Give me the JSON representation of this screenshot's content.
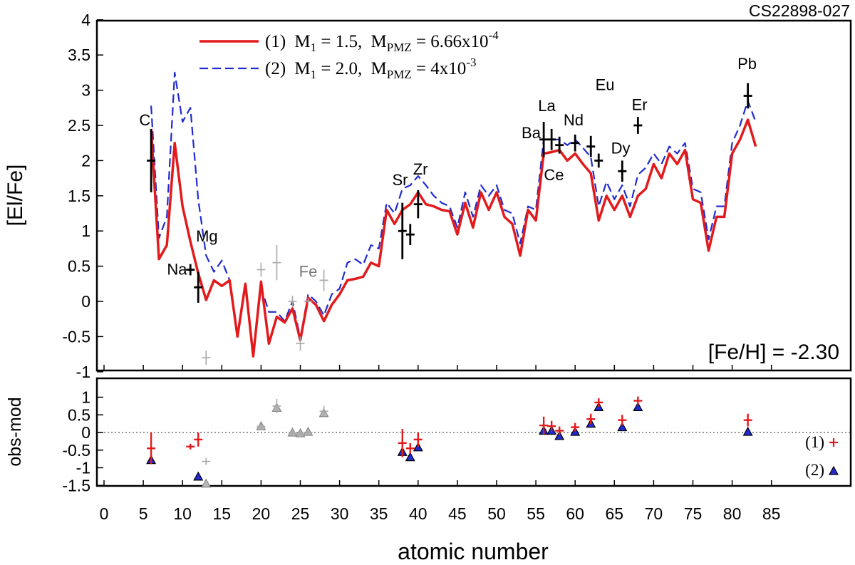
{
  "chart_data": [
    {
      "panel": "top",
      "type": "line",
      "star_name": "CS22898-027",
      "ylabel": "[El/Fe]",
      "xlabel": "atomic number",
      "xlim": [
        0,
        88
      ],
      "ylim": [
        -1,
        4
      ],
      "x_ticks": [
        0,
        5,
        10,
        15,
        20,
        25,
        30,
        35,
        40,
        45,
        50,
        55,
        60,
        65,
        70,
        75,
        80,
        85
      ],
      "y_ticks": [
        "4",
        "3.5",
        "3",
        "2.5",
        "2",
        "1.5",
        "1",
        "0.5",
        "0",
        "-0.5",
        "-1"
      ],
      "metallicity_label": "[Fe/H] = -2.30",
      "legend": [
        {
          "id": "1",
          "prefix": "(1)",
          "m1": "M",
          "m1_sub": "1",
          "m1_val": " = 1.5,",
          "mp": "M",
          "mp_sub": "PMZ",
          "mp_val": " = 6.66x10",
          "mp_exp": "-4",
          "color": "#e31a1c",
          "dash": "solid"
        },
        {
          "id": "2",
          "prefix": "(2)",
          "m1": "M",
          "m1_sub": "1",
          "m1_val": " = 2.0,",
          "mp": "M",
          "mp_sub": "PMZ",
          "mp_val": " = 4x10",
          "mp_exp": "-3",
          "color": "#1f2bd1",
          "dash": "dashed"
        }
      ],
      "series": [
        {
          "id": "1",
          "color": "#e31a1c",
          "x": [
            6,
            7,
            8,
            9,
            10,
            11,
            12,
            13,
            14,
            15,
            16,
            17,
            18,
            19,
            20,
            21,
            22,
            23,
            24,
            25,
            26,
            27,
            28,
            29,
            30,
            31,
            32,
            33,
            34,
            35,
            36,
            37,
            38,
            39,
            40,
            41,
            42,
            43,
            44,
            45,
            46,
            47,
            48,
            49,
            50,
            51,
            52,
            53,
            54,
            55,
            56,
            57,
            58,
            59,
            60,
            61,
            62,
            63,
            64,
            65,
            66,
            67,
            68,
            69,
            70,
            71,
            72,
            73,
            74,
            75,
            76,
            77,
            78,
            79,
            80,
            81,
            82,
            83
          ],
          "y": [
            2.45,
            0.6,
            0.8,
            2.25,
            1.35,
            0.85,
            0.4,
            0.02,
            0.3,
            0.22,
            0.3,
            -0.5,
            0.25,
            -0.78,
            0.28,
            -0.6,
            -0.22,
            -0.3,
            -0.1,
            -0.55,
            0.05,
            -0.05,
            -0.28,
            -0.05,
            0.1,
            0.3,
            0.32,
            0.35,
            0.55,
            0.5,
            1.3,
            1.1,
            1.3,
            1.38,
            1.55,
            1.38,
            1.35,
            1.3,
            1.28,
            0.95,
            1.4,
            1.05,
            1.55,
            1.3,
            1.55,
            1.2,
            1.1,
            0.65,
            1.3,
            1.15,
            2.1,
            2.12,
            2.15,
            2.0,
            2.1,
            1.95,
            1.82,
            1.15,
            1.5,
            1.3,
            1.5,
            1.2,
            1.5,
            1.6,
            1.95,
            1.75,
            2.1,
            1.95,
            2.15,
            1.45,
            1.4,
            0.72,
            1.2,
            1.2,
            2.1,
            2.3,
            2.58,
            2.2
          ]
        },
        {
          "id": "2",
          "color": "#1f2bd1",
          "x": [
            6,
            7,
            8,
            9,
            10,
            11,
            12,
            13,
            14,
            15,
            16,
            17,
            18,
            19,
            20,
            21,
            22,
            23,
            24,
            25,
            26,
            27,
            28,
            29,
            30,
            31,
            32,
            33,
            34,
            35,
            36,
            37,
            38,
            39,
            40,
            41,
            42,
            43,
            44,
            45,
            46,
            47,
            48,
            49,
            50,
            51,
            52,
            53,
            54,
            55,
            56,
            57,
            58,
            59,
            60,
            61,
            62,
            63,
            64,
            65,
            66,
            67,
            68,
            69,
            70,
            71,
            72,
            73,
            74,
            75,
            76,
            77,
            78,
            79,
            80,
            81,
            82,
            83
          ],
          "y": [
            2.78,
            0.9,
            1.2,
            3.25,
            2.55,
            2.75,
            1.45,
            0.65,
            0.42,
            0.58,
            0.3,
            -0.45,
            0.25,
            -0.75,
            0.2,
            -0.15,
            -0.15,
            -0.28,
            0.0,
            -0.52,
            0.1,
            0.0,
            -0.2,
            0.1,
            0.18,
            0.55,
            0.6,
            0.52,
            0.8,
            0.75,
            1.4,
            1.25,
            1.6,
            1.65,
            1.78,
            1.65,
            1.5,
            1.4,
            1.35,
            1.05,
            1.55,
            1.2,
            1.65,
            1.5,
            1.65,
            1.3,
            1.25,
            0.82,
            1.35,
            1.3,
            2.3,
            2.3,
            2.3,
            2.22,
            2.3,
            2.18,
            2.05,
            1.35,
            1.7,
            1.45,
            1.65,
            1.35,
            1.8,
            1.9,
            2.1,
            1.95,
            2.2,
            2.1,
            2.25,
            1.6,
            1.55,
            0.88,
            1.35,
            1.35,
            2.25,
            2.5,
            2.85,
            2.55
          ]
        }
      ],
      "observations": [
        {
          "x": 6,
          "y": 2.0,
          "err": 0.45,
          "gray": false
        },
        {
          "x": 11,
          "y": 0.45,
          "err": 0.08,
          "gray": false
        },
        {
          "x": 12,
          "y": 0.2,
          "err": 0.22,
          "gray": false
        },
        {
          "x": 13,
          "y": -0.8,
          "err": 0.1,
          "gray": true
        },
        {
          "x": 20,
          "y": 0.45,
          "err": 0.1,
          "gray": true
        },
        {
          "x": 22,
          "y": 0.55,
          "err": 0.25,
          "gray": true
        },
        {
          "x": 24,
          "y": 0.0,
          "err": 0.08,
          "gray": true
        },
        {
          "x": 25,
          "y": -0.6,
          "err": 0.1,
          "gray": true
        },
        {
          "x": 26,
          "y": 0.0,
          "err": 0.05,
          "gray": true
        },
        {
          "x": 28,
          "y": 0.3,
          "err": 0.15,
          "gray": true
        },
        {
          "x": 38,
          "y": 1.0,
          "err": 0.4,
          "gray": false
        },
        {
          "x": 39,
          "y": 0.95,
          "err": 0.15,
          "gray": false
        },
        {
          "x": 40,
          "y": 1.38,
          "err": 0.2,
          "gray": false
        },
        {
          "x": 56,
          "y": 2.3,
          "err": 0.25,
          "gray": false
        },
        {
          "x": 57,
          "y": 2.3,
          "err": 0.15,
          "gray": false
        },
        {
          "x": 58,
          "y": 2.22,
          "err": 0.12,
          "gray": false
        },
        {
          "x": 60,
          "y": 2.25,
          "err": 0.12,
          "gray": false
        },
        {
          "x": 62,
          "y": 2.2,
          "err": 0.15,
          "gray": false
        },
        {
          "x": 63,
          "y": 2.0,
          "err": 0.1,
          "gray": false
        },
        {
          "x": 66,
          "y": 1.85,
          "err": 0.15,
          "gray": false
        },
        {
          "x": 68,
          "y": 2.5,
          "err": 0.12,
          "gray": false
        },
        {
          "x": 82,
          "y": 2.92,
          "err": 0.18,
          "gray": false
        }
      ],
      "element_labels": [
        {
          "text": "C",
          "x": 5.2,
          "y": 2.5,
          "gray": false
        },
        {
          "text": "Na",
          "x": 9.3,
          "y": 0.38,
          "gray": false
        },
        {
          "text": "Mg",
          "x": 13.1,
          "y": 0.85,
          "gray": false
        },
        {
          "text": "Fe",
          "x": 26.0,
          "y": 0.35,
          "gray": true
        },
        {
          "text": "Sr",
          "x": 37.7,
          "y": 1.65,
          "gray": false
        },
        {
          "text": "Zr",
          "x": 40.3,
          "y": 1.8,
          "gray": false
        },
        {
          "text": "Ba",
          "x": 54.4,
          "y": 2.32,
          "gray": false
        },
        {
          "text": "La",
          "x": 56.4,
          "y": 2.7,
          "gray": false
        },
        {
          "text": "Ce",
          "x": 57.3,
          "y": 1.72,
          "gray": false
        },
        {
          "text": "Nd",
          "x": 59.8,
          "y": 2.5,
          "gray": false
        },
        {
          "text": "Eu",
          "x": 63.8,
          "y": 3.0,
          "gray": false
        },
        {
          "text": "Dy",
          "x": 65.8,
          "y": 2.1,
          "gray": false
        },
        {
          "text": "Er",
          "x": 68.2,
          "y": 2.72,
          "gray": false
        },
        {
          "text": "Pb",
          "x": 81.9,
          "y": 3.3,
          "gray": false
        }
      ]
    },
    {
      "panel": "bottom",
      "type": "scatter",
      "ylabel": "obs-mod",
      "xlabel": "atomic number",
      "ylim": [
        -1.5,
        1.5
      ],
      "y_ticks": [
        "1",
        "0.5",
        "0",
        "-0.5",
        "-1",
        "-1.5"
      ],
      "legend": [
        {
          "id": "1",
          "label": "(1)",
          "marker": "+",
          "color": "#e31a1c"
        },
        {
          "id": "2",
          "label": "(2)",
          "marker": "triangle",
          "color": "#1f2bd1"
        }
      ],
      "residuals_1": [
        {
          "x": 6,
          "y": -0.45,
          "err": 0.45,
          "gray": false
        },
        {
          "x": 11,
          "y": -0.4,
          "err": 0.08,
          "gray": false
        },
        {
          "x": 12,
          "y": -0.2,
          "err": 0.2,
          "gray": false
        },
        {
          "x": 13,
          "y": -0.82,
          "err": 0.1,
          "gray": true
        },
        {
          "x": 20,
          "y": 0.17,
          "err": 0.08,
          "gray": true
        },
        {
          "x": 22,
          "y": 0.75,
          "err": 0.2,
          "gray": true
        },
        {
          "x": 24,
          "y": -0.02,
          "err": 0.08,
          "gray": true
        },
        {
          "x": 25,
          "y": -0.05,
          "err": 0.08,
          "gray": true
        },
        {
          "x": 26,
          "y": 0.0,
          "err": 0.05,
          "gray": true
        },
        {
          "x": 28,
          "y": 0.6,
          "err": 0.15,
          "gray": true
        },
        {
          "x": 38,
          "y": -0.3,
          "err": 0.4,
          "gray": false
        },
        {
          "x": 39,
          "y": -0.45,
          "err": 0.15,
          "gray": false
        },
        {
          "x": 40,
          "y": -0.2,
          "err": 0.2,
          "gray": false
        },
        {
          "x": 56,
          "y": 0.2,
          "err": 0.25,
          "gray": false
        },
        {
          "x": 57,
          "y": 0.18,
          "err": 0.15,
          "gray": false
        },
        {
          "x": 58,
          "y": 0.05,
          "err": 0.12,
          "gray": false
        },
        {
          "x": 60,
          "y": 0.15,
          "err": 0.12,
          "gray": false
        },
        {
          "x": 62,
          "y": 0.38,
          "err": 0.15,
          "gray": false
        },
        {
          "x": 63,
          "y": 0.85,
          "err": 0.12,
          "gray": false
        },
        {
          "x": 66,
          "y": 0.35,
          "err": 0.15,
          "gray": false
        },
        {
          "x": 68,
          "y": 0.9,
          "err": 0.12,
          "gray": false
        },
        {
          "x": 82,
          "y": 0.35,
          "err": 0.18,
          "gray": false
        }
      ],
      "residuals_2": [
        {
          "x": 6,
          "y": -0.78,
          "gray": false
        },
        {
          "x": 12,
          "y": -1.25,
          "gray": false
        },
        {
          "x": 13,
          "y": -1.45,
          "gray": true
        },
        {
          "x": 20,
          "y": 0.18,
          "gray": true
        },
        {
          "x": 22,
          "y": 0.7,
          "gray": true
        },
        {
          "x": 24,
          "y": 0.0,
          "gray": true
        },
        {
          "x": 25,
          "y": -0.02,
          "gray": true
        },
        {
          "x": 26,
          "y": 0.02,
          "gray": true
        },
        {
          "x": 28,
          "y": 0.55,
          "gray": true
        },
        {
          "x": 38,
          "y": -0.55,
          "gray": false
        },
        {
          "x": 39,
          "y": -0.7,
          "gray": false
        },
        {
          "x": 40,
          "y": -0.42,
          "gray": false
        },
        {
          "x": 56,
          "y": 0.05,
          "gray": false
        },
        {
          "x": 57,
          "y": 0.05,
          "gray": false
        },
        {
          "x": 58,
          "y": -0.1,
          "gray": false
        },
        {
          "x": 60,
          "y": 0.02,
          "gray": false
        },
        {
          "x": 62,
          "y": 0.25,
          "gray": false
        },
        {
          "x": 63,
          "y": 0.72,
          "gray": false
        },
        {
          "x": 66,
          "y": 0.15,
          "gray": false
        },
        {
          "x": 68,
          "y": 0.72,
          "gray": false
        },
        {
          "x": 82,
          "y": 0.02,
          "gray": false
        }
      ]
    }
  ],
  "colors": {
    "model1": "#e31a1c",
    "model2": "#1f2bd1",
    "obs": "#000000",
    "obs_gray": "#a8a8a8"
  }
}
